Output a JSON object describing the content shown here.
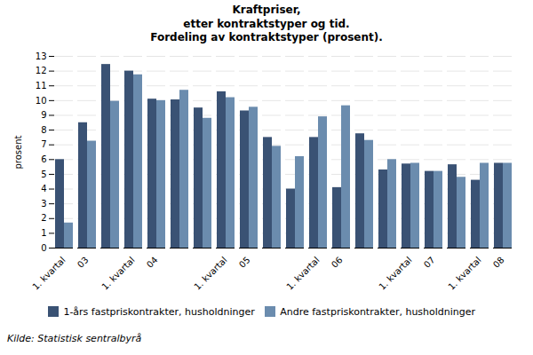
{
  "chart_data": {
    "type": "bar",
    "title": "Kraftpriser,\netter kontraktstyper og tid.\nFordeling av kontraktstyper (prosent).",
    "ylabel": "prosent",
    "caption": "Kilde: Statistisk sentralbyrå",
    "categories": [
      "1. kvartal",
      "03",
      null,
      "1. kvartal",
      "04",
      null,
      null,
      "1. kvartal",
      "05",
      null,
      null,
      "1. kvartal",
      "06",
      null,
      null,
      "1. kvartal",
      "07",
      null,
      "1. kvartal",
      "08"
    ],
    "series": [
      {
        "name": "1-års fastpriskontrakter, husholdninger",
        "color": "#3a5274",
        "values": [
          6.0,
          8.5,
          12.45,
          12.0,
          10.1,
          10.05,
          9.5,
          10.6,
          9.3,
          7.5,
          4.0,
          7.5,
          4.1,
          7.75,
          5.3,
          5.7,
          5.2,
          5.65,
          4.6,
          5.75
        ]
      },
      {
        "name": "Andre fastpriskontrakter, husholdninger",
        "color": "#6b8cae",
        "values": [
          1.7,
          7.25,
          9.95,
          11.75,
          10.0,
          10.7,
          8.8,
          10.2,
          9.55,
          6.9,
          6.2,
          8.9,
          9.65,
          7.3,
          6.0,
          5.75,
          5.2,
          4.8,
          5.75,
          5.75
        ]
      }
    ],
    "ylim": [
      0,
      13
    ],
    "yticks": [
      0,
      1,
      2,
      3,
      4,
      5,
      6,
      7,
      8,
      9,
      10,
      11,
      12,
      13
    ],
    "grid": true,
    "legend": "bottom"
  }
}
